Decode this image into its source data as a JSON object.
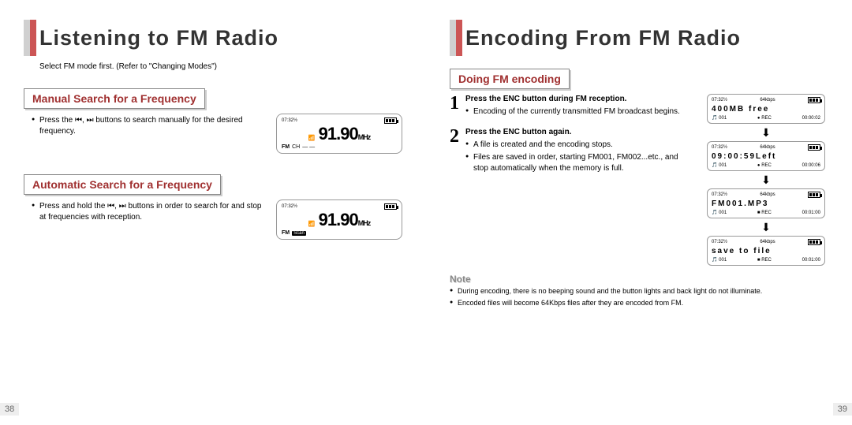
{
  "left": {
    "page_num": "38",
    "title": "Listening to FM Radio",
    "intro": "Select FM mode first. (Refer to \"Changing Modes\")",
    "sec1": {
      "header": "Manual Search for a Frequency",
      "text": "Press the ⏮, ⏭ buttons to search manually for the desired frequency.",
      "lcd": {
        "time": "07:32½",
        "freq": "91.90",
        "unit": "MHz",
        "b1": "FM",
        "b2": "CH",
        "b3": "— —"
      }
    },
    "sec2": {
      "header": "Automatic Search for a Frequency",
      "text": "Press and hold the ⏮, ⏭ buttons in order to search for and stop at frequencies with reception.",
      "lcd": {
        "time": "07:32½",
        "freq": "91.90",
        "unit": "MHz",
        "b1": "FM",
        "b2": "Scan"
      }
    }
  },
  "right": {
    "page_num": "39",
    "title": "Encoding From FM Radio",
    "sec": {
      "header": "Doing FM encoding"
    },
    "step1": {
      "num": "1",
      "title": "Press the ENC button during FM reception.",
      "l1": "Encoding of the currently transmitted FM broadcast begins."
    },
    "step2": {
      "num": "2",
      "title": "Press the ENC button again.",
      "l1": "A file is created and the encoding stops.",
      "l2": "Files are saved in order, starting FM001, FM002...etc., and stop automatically when the memory is full."
    },
    "mini_common": {
      "time": "07:32½",
      "rate": "64kbps",
      "trk": "001",
      "rec": "● REC"
    },
    "mini1": {
      "mid": "400MB free",
      "ts": "00:00:02"
    },
    "mini2": {
      "mid": "09:00:59Left",
      "ts": "00:00:06"
    },
    "mini3": {
      "mid": "FM001.MP3",
      "ts": "00:01:00"
    },
    "mini4": {
      "mid": "save to file",
      "ts": "00:01:00"
    },
    "note": {
      "header": "Note",
      "l1": "During encoding, there is no beeping sound and the button lights and back light do not illuminate.",
      "l2": "Encoded files will become 64Kbps files after they are encoded from FM."
    }
  }
}
